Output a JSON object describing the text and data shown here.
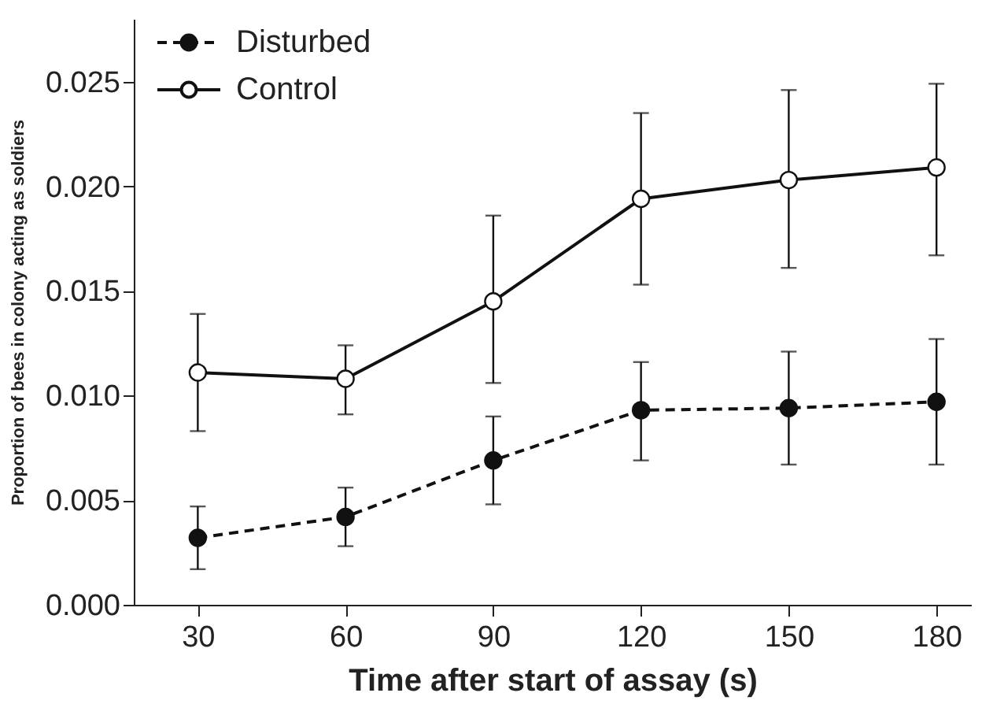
{
  "chart_data": {
    "type": "line",
    "xlabel": "Time after start of assay (s)",
    "ylabel": "Proportion of bees in colony acting as soldiers",
    "x": [
      30,
      60,
      90,
      120,
      150,
      180
    ],
    "series": [
      {
        "name": "Disturbed",
        "color": "#111111",
        "line_style": "dashed",
        "values": [
          0.0032,
          0.0042,
          0.0069,
          0.0093,
          0.0094,
          0.0097
        ],
        "errors": [
          [
            0.0017,
            0.0047
          ],
          [
            0.0028,
            0.0056
          ],
          [
            0.0048,
            0.009
          ],
          [
            0.0069,
            0.0116
          ],
          [
            0.0067,
            0.0121
          ],
          [
            0.0067,
            0.0127
          ]
        ]
      },
      {
        "name": "Control",
        "color": "#111111",
        "line_style": "solid",
        "values": [
          0.0111,
          0.0108,
          0.0145,
          0.0194,
          0.0203,
          0.0209
        ],
        "errors": [
          [
            0.0083,
            0.0139
          ],
          [
            0.0091,
            0.0124
          ],
          [
            0.0106,
            0.0186
          ],
          [
            0.0153,
            0.0235
          ],
          [
            0.0161,
            0.0246
          ],
          [
            0.0167,
            0.0249
          ]
        ]
      }
    ],
    "xlim": [
      17,
      187
    ],
    "xticks": [
      30,
      60,
      90,
      120,
      150,
      180
    ],
    "ylim": [
      0,
      0.028
    ],
    "yticks": [
      {
        "value": 0,
        "label": "0.000"
      },
      {
        "value": 0.005,
        "label": "0.005"
      },
      {
        "value": 0.01,
        "label": "0.010"
      },
      {
        "value": 0.015,
        "label": "0.015"
      },
      {
        "value": 0.02,
        "label": "0.020"
      },
      {
        "value": 0.025,
        "label": "0.025"
      }
    ],
    "grid": false,
    "legend": "top left",
    "marker": "circle"
  }
}
